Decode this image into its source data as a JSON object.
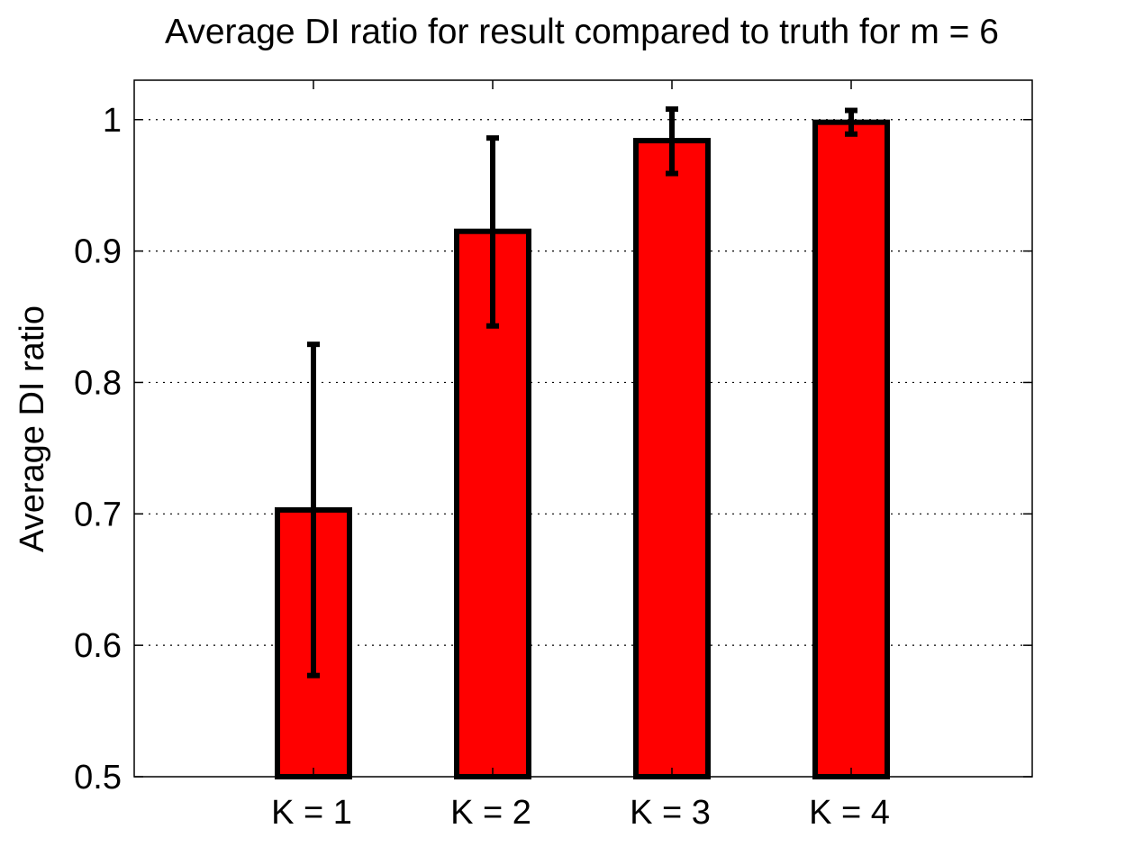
{
  "chart_data": {
    "type": "bar",
    "title": "Average DI ratio for result compared to truth for m = 6",
    "xlabel": "",
    "ylabel": "Average DI ratio",
    "categories": [
      "K = 1",
      "K = 2",
      "K = 3",
      "K = 4"
    ],
    "values": [
      0.703,
      0.915,
      0.984,
      0.998
    ],
    "error_low": [
      0.577,
      0.843,
      0.959,
      0.989
    ],
    "error_high": [
      0.829,
      0.986,
      1.008,
      1.007
    ],
    "ylim": [
      0.5,
      1.03
    ],
    "yticks": [
      0.5,
      0.6,
      0.7,
      0.8,
      0.9,
      1.0
    ],
    "ytick_labels": [
      "0.5",
      "0.6",
      "0.7",
      "0.8",
      "0.9",
      "1"
    ],
    "grid": "horizontal-dotted",
    "legend": "none",
    "bar_color": "#ff0000",
    "edge_color": "#000000"
  }
}
